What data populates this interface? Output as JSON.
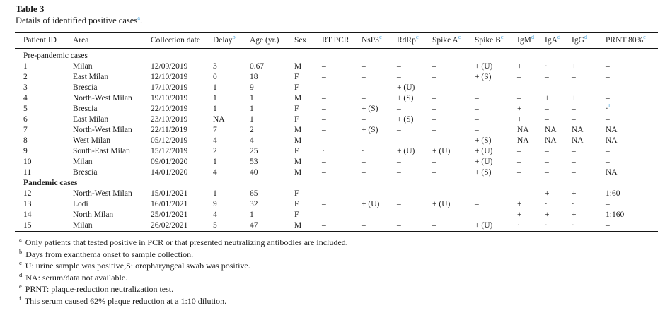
{
  "title": "Table 3",
  "subtitle": {
    "text": "Details of identified positive cases",
    "sup": "a",
    "suffix": "."
  },
  "table": {
    "columns": [
      {
        "label": "Patient ID",
        "sup": ""
      },
      {
        "label": "Area",
        "sup": ""
      },
      {
        "label": "Collection date",
        "sup": ""
      },
      {
        "label": "Delay",
        "sup": "b"
      },
      {
        "label": "Age (yr.)",
        "sup": ""
      },
      {
        "label": "Sex",
        "sup": ""
      },
      {
        "label": "RT PCR",
        "sup": ""
      },
      {
        "label": "NsP3",
        "sup": "c"
      },
      {
        "label": "RdRp",
        "sup": "c"
      },
      {
        "label": "Spike A",
        "sup": "c"
      },
      {
        "label": "Spike B",
        "sup": "c"
      },
      {
        "label": "IgM",
        "sup": "d"
      },
      {
        "label": "IgA",
        "sup": "d"
      },
      {
        "label": "IgG",
        "sup": "d"
      },
      {
        "label": "PRNT 80%",
        "sup": "e"
      }
    ],
    "sections": [
      {
        "label": "Pre-pandemic cases",
        "bold": false,
        "rows": [
          [
            "1",
            "Milan",
            "12/09/2019",
            "3",
            "0.67",
            "M",
            "–",
            "–",
            "–",
            "–",
            "+ (U)",
            "+",
            "·",
            "+",
            "–"
          ],
          [
            "2",
            "East Milan",
            "12/10/2019",
            "0",
            "18",
            "F",
            "–",
            "–",
            "–",
            "–",
            "+ (S)",
            "–",
            "–",
            "–",
            "–"
          ],
          [
            "3",
            "Brescia",
            "17/10/2019",
            "1",
            "9",
            "F",
            "–",
            "–",
            "+ (U)",
            "–",
            "–",
            "–",
            "–",
            "–",
            "–"
          ],
          [
            "4",
            "North-West Milan",
            "19/10/2019",
            "1",
            "1",
            "M",
            "–",
            "–",
            "+ (S)",
            "–",
            "–",
            "–",
            "+",
            "+",
            "–"
          ],
          [
            "5",
            "Brescia",
            "22/10/2019",
            "1",
            "1",
            "F",
            "–",
            "+ (S)",
            "–",
            "–",
            "–",
            "+",
            "–",
            "–",
            "·^f"
          ],
          [
            "6",
            "East Milan",
            "23/10/2019",
            "NA",
            "1",
            "F",
            "–",
            "–",
            "+ (S)",
            "–",
            "–",
            "+",
            "–",
            "–",
            "–"
          ],
          [
            "7",
            "North-West Milan",
            "22/11/2019",
            "7",
            "2",
            "M",
            "–",
            "+ (S)",
            "–",
            "–",
            "–",
            "NA",
            "NA",
            "NA",
            "NA"
          ],
          [
            "8",
            "West Milan",
            "05/12/2019",
            "4",
            "4",
            "M",
            "–",
            "–",
            "–",
            "–",
            "+ (S)",
            "NA",
            "NA",
            "NA",
            "NA"
          ],
          [
            "9",
            "South-East Milan",
            "15/12/2019",
            "2",
            "25",
            "F",
            "·",
            "·",
            "+ (U)",
            "+ (U)",
            "+ (U)",
            "–",
            "–",
            "–",
            "–"
          ],
          [
            "10",
            "Milan",
            "09/01/2020",
            "1",
            "53",
            "M",
            "–",
            "–",
            "–",
            "–",
            "+ (U)",
            "–",
            "–",
            "–",
            "–"
          ],
          [
            "11",
            "Brescia",
            "14/01/2020",
            "4",
            "40",
            "M",
            "–",
            "–",
            "–",
            "–",
            "+ (S)",
            "–",
            "–",
            "–",
            "NA"
          ]
        ]
      },
      {
        "label": "Pandemic cases",
        "bold": true,
        "rows": [
          [
            "12",
            "North-West Milan",
            "15/01/2021",
            "1",
            "65",
            "F",
            "–",
            "–",
            "–",
            "–",
            "–",
            "–",
            "+",
            "+",
            "1:60"
          ],
          [
            "13",
            "Lodi",
            "16/01/2021",
            "9",
            "32",
            "F",
            "–",
            "+ (U)",
            "–",
            "+ (U)",
            "–",
            "+",
            "·",
            "·",
            "–"
          ],
          [
            "14",
            "North Milan",
            "25/01/2021",
            "4",
            "1",
            "F",
            "–",
            "–",
            "–",
            "–",
            "–",
            "+",
            "+",
            "+",
            "1:160"
          ],
          [
            "15",
            "Milan",
            "26/02/2021",
            "5",
            "47",
            "M",
            "–",
            "–",
            "–",
            "–",
            "+ (U)",
            "·",
            "·",
            "·",
            "–"
          ]
        ]
      }
    ]
  },
  "footnotes": [
    {
      "marker": "a",
      "text": "Only patients that tested positive in PCR or that presented neutralizing antibodies are included."
    },
    {
      "marker": "b",
      "text": "Days from exanthema onset to sample collection."
    },
    {
      "marker": "c",
      "text": "U: urine sample was positive,S: oropharyngeal swab was positive."
    },
    {
      "marker": "d",
      "text": "NA: serum/data not available."
    },
    {
      "marker": "e",
      "text": "PRNT: plaque-reduction neutralization test."
    },
    {
      "marker": "f",
      "text": "This serum caused 62% plaque reduction at a 1:10 dilution."
    }
  ],
  "colors": {
    "accent_blue": "#58ace0",
    "text": "#1c1c1c",
    "rule": "#161616"
  }
}
